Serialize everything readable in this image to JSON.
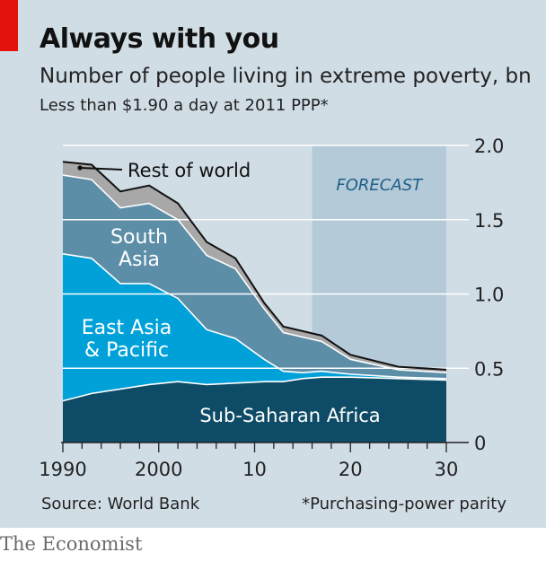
{
  "header": {
    "title": "Always with you",
    "subtitle": "Number of people living in extreme poverty, bn",
    "subsubtitle": "Less than $1.90 a day at 2011 PPP*"
  },
  "footer": {
    "source": "Source: World Bank",
    "footnote": "*Purchasing-power parity",
    "logo": "The Economist"
  },
  "colors": {
    "background": "#d0dde5",
    "forecast_shade": "#b4cad8",
    "ssa": "#0e4b66",
    "eap": "#00a1d9",
    "south_asia": "#5d8ea8",
    "rest_of_world": "#a8a8a8",
    "outline": "#111111",
    "brand_red": "#e3120b"
  },
  "chart_data": {
    "type": "area",
    "stacked": true,
    "title": "Always with you",
    "ylabel": "Number of people living in extreme poverty, bn",
    "ylim": [
      0,
      2.0
    ],
    "xlim": [
      1990,
      2030
    ],
    "x_ticks": [
      1990,
      1992,
      1994,
      1996,
      1998,
      2000,
      2002,
      2004,
      2006,
      2008,
      2010,
      2012,
      2014,
      2016,
      2018,
      2020,
      2022,
      2024,
      2026,
      2028,
      2030
    ],
    "x_tick_labels": {
      "1990": "1990",
      "2000": "2000",
      "2010": "10",
      "2020": "20",
      "2030": "30"
    },
    "y_ticks": [
      0,
      0.5,
      1.0,
      1.5,
      2.0
    ],
    "y_tick_labels": [
      "0",
      "0.5",
      "1.0",
      "1.5",
      "2.0"
    ],
    "forecast": {
      "label": "FORECAST",
      "start": 2016,
      "end": 2030
    },
    "x": [
      1990,
      1993,
      1996,
      1999,
      2002,
      2005,
      2008,
      2011,
      2013,
      2015,
      2017,
      2020,
      2025,
      2030
    ],
    "series": [
      {
        "name": "Sub-Saharan Africa",
        "label": "Sub-Saharan Africa",
        "values": [
          0.28,
          0.33,
          0.36,
          0.39,
          0.41,
          0.39,
          0.4,
          0.41,
          0.41,
          0.43,
          0.44,
          0.44,
          0.43,
          0.42
        ]
      },
      {
        "name": "East Asia & Pacific",
        "label": "East Asia & Pacific",
        "values": [
          0.99,
          0.91,
          0.71,
          0.68,
          0.56,
          0.37,
          0.3,
          0.15,
          0.07,
          0.04,
          0.04,
          0.02,
          0.01,
          0.01
        ]
      },
      {
        "name": "South Asia",
        "label": "South Asia",
        "values": [
          0.53,
          0.53,
          0.51,
          0.54,
          0.53,
          0.5,
          0.47,
          0.34,
          0.26,
          0.24,
          0.2,
          0.1,
          0.05,
          0.04
        ]
      },
      {
        "name": "Rest of world",
        "label": "Rest of world",
        "values": [
          0.09,
          0.1,
          0.11,
          0.12,
          0.11,
          0.09,
          0.07,
          0.04,
          0.04,
          0.04,
          0.04,
          0.03,
          0.02,
          0.02
        ]
      }
    ]
  }
}
